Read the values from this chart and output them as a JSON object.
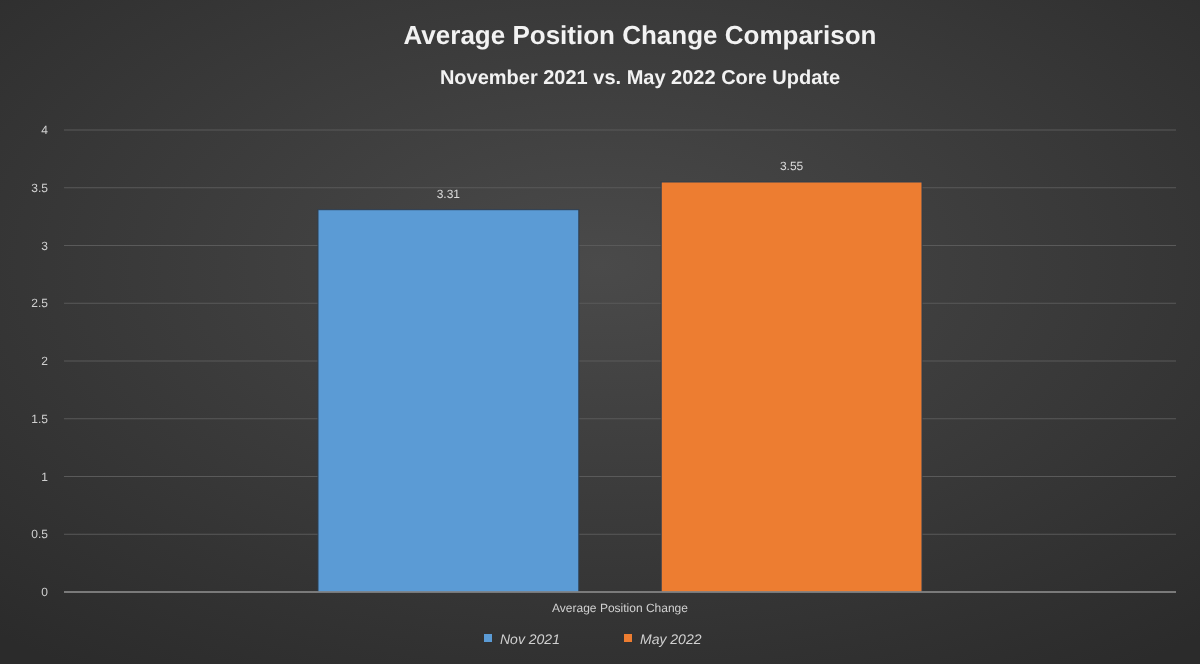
{
  "chart_data": {
    "type": "bar",
    "title": "Average Position Change Comparison",
    "subtitle": "November 2021 vs. May 2022 Core Update",
    "categories": [
      "Average Position Change"
    ],
    "series": [
      {
        "name": "Nov 2021",
        "color": "#5b9bd5",
        "values": [
          3.31
        ]
      },
      {
        "name": "May 2022",
        "color": "#ed7d31",
        "values": [
          3.55
        ]
      }
    ],
    "ylim": [
      0,
      4
    ],
    "yticks": [
      0,
      0.5,
      1,
      1.5,
      2,
      2.5,
      3,
      3.5,
      4
    ],
    "grid": "y",
    "data_labels": true,
    "legend": "bottom"
  }
}
